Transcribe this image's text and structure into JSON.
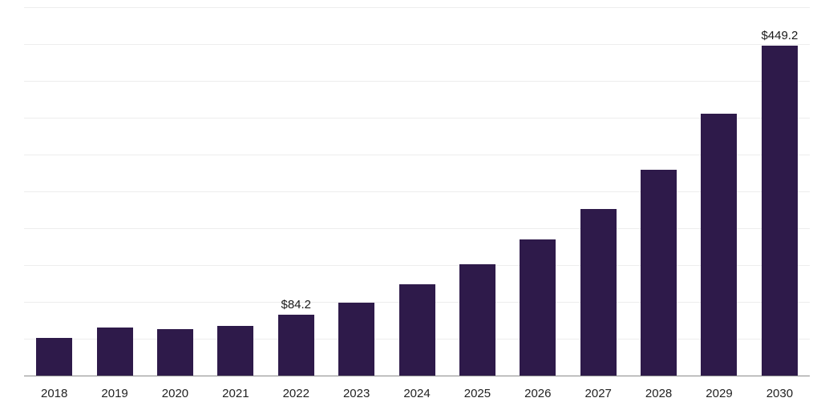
{
  "chart_data": {
    "type": "bar",
    "title": "",
    "xlabel": "",
    "ylabel": "",
    "categories": [
      "2018",
      "2019",
      "2020",
      "2021",
      "2022",
      "2023",
      "2024",
      "2025",
      "2026",
      "2027",
      "2028",
      "2029",
      "2030"
    ],
    "values": [
      52,
      66,
      64,
      69,
      84.2,
      100,
      125,
      152,
      186,
      227,
      280,
      356,
      449.2
    ],
    "ylim": [
      0,
      500
    ],
    "gridline_step": 50,
    "grid": true,
    "legend": "none",
    "bar_color": "#2e1a4a",
    "gridline_color": "#ededed",
    "baseline_color": "#8a8a8a",
    "data_labels": [
      {
        "category": "2022",
        "text": "$84.2"
      },
      {
        "category": "2030",
        "text": "$449.2"
      }
    ]
  }
}
